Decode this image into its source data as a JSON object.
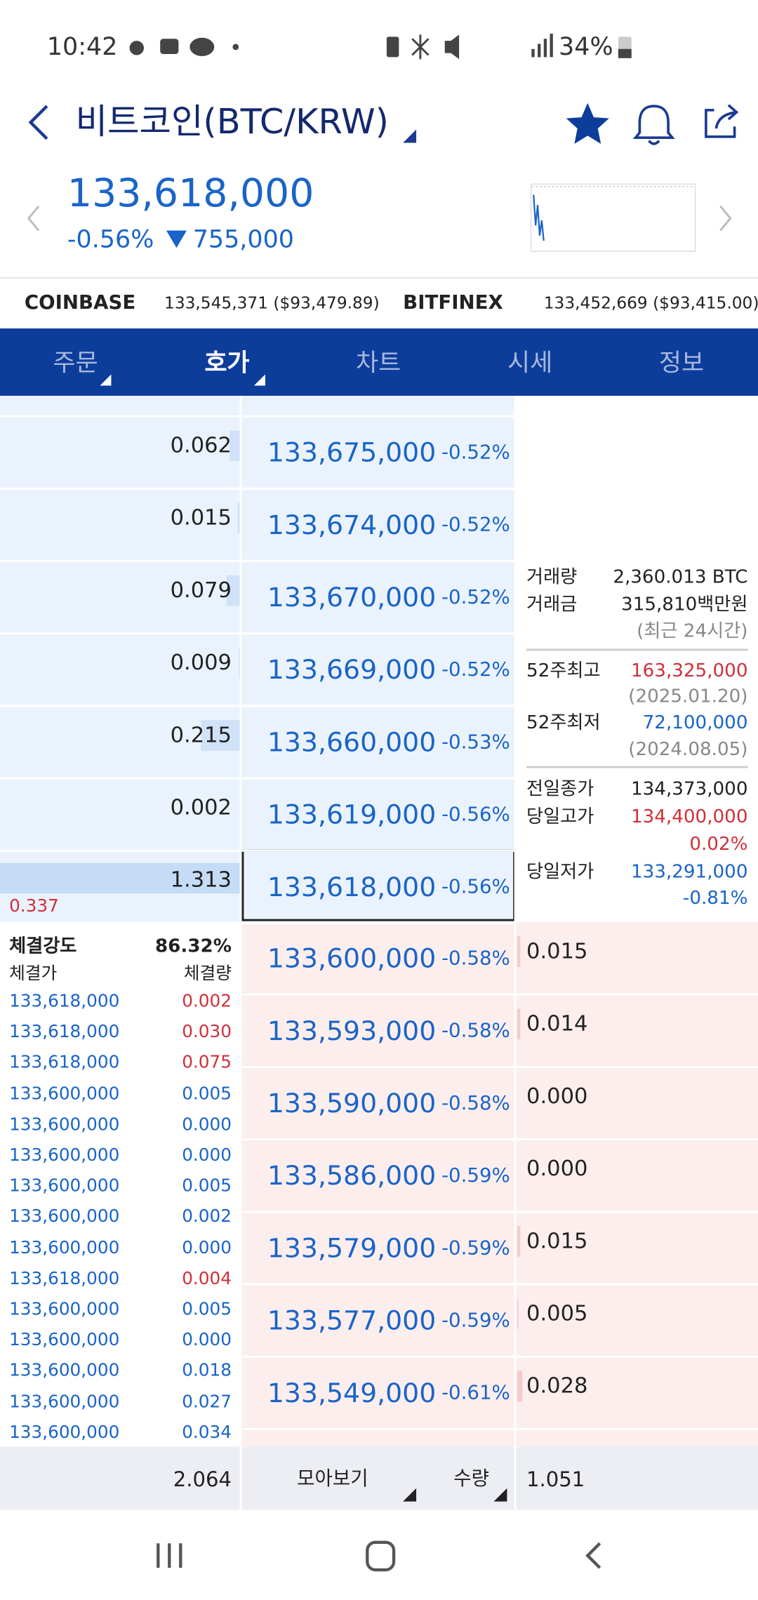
{
  "status": {
    "time": "10:42",
    "battery": "34%"
  },
  "header": {
    "title": "비트코인(BTC/KRW)",
    "price": "133,618,000",
    "change_rate": "-0.56%",
    "change_amount": "755,000"
  },
  "exchanges": [
    {
      "name": "COINBASE",
      "price": "133,545,371 ($93,479.89)"
    },
    {
      "name": "BITFINEX",
      "price": "133,452,669 ($93,415.00)"
    }
  ],
  "tabs": [
    "주문",
    "호가",
    "차트",
    "시세",
    "정보"
  ],
  "asks": [
    {
      "quantity": "0.062",
      "price": "133,675,000",
      "rate": "-0.52%"
    },
    {
      "quantity": "0.015",
      "price": "133,674,000",
      "rate": "-0.52%"
    },
    {
      "quantity": "0.079",
      "price": "133,670,000",
      "rate": "-0.52%"
    },
    {
      "quantity": "0.009",
      "price": "133,669,000",
      "rate": "-0.52%"
    },
    {
      "quantity": "0.215",
      "price": "133,660,000",
      "rate": "-0.53%"
    },
    {
      "quantity": "0.002",
      "price": "133,619,000",
      "rate": "-0.56%"
    },
    {
      "quantity": "1.313",
      "price": "133,618,000",
      "rate": "-0.56%"
    }
  ],
  "current_note": "0.337",
  "info": {
    "volume_label": "거래량",
    "volume": "2,360.013 BTC",
    "amount_label": "거래금",
    "amount": "315,810백만원",
    "period": "(최근 24시간)",
    "high52_label": "52주최고",
    "high52": "163,325,000",
    "high52_date": "(2025.01.20)",
    "low52_label": "52주최저",
    "low52": "72,100,000",
    "low52_date": "(2024.08.05)",
    "prev_close_label": "전일종가",
    "prev_close": "134,373,000",
    "day_high_label": "당일고가",
    "day_high": "134,400,000",
    "day_high_rate": "0.02%",
    "day_low_label": "당일저가",
    "day_low": "133,291,000",
    "day_low_rate": "-0.81%"
  },
  "bids": [
    {
      "price": "133,600,000",
      "rate": "-0.58%",
      "quantity": "0.015"
    },
    {
      "price": "133,593,000",
      "rate": "-0.58%",
      "quantity": "0.014"
    },
    {
      "price": "133,590,000",
      "rate": "-0.58%",
      "quantity": "0.000"
    },
    {
      "price": "133,586,000",
      "rate": "-0.59%",
      "quantity": "0.000"
    },
    {
      "price": "133,579,000",
      "rate": "-0.59%",
      "quantity": "0.015"
    },
    {
      "price": "133,577,000",
      "rate": "-0.59%",
      "quantity": "0.005"
    },
    {
      "price": "133,549,000",
      "rate": "-0.61%",
      "quantity": "0.028"
    }
  ],
  "trades": {
    "strength_label": "체결강도",
    "strength": "86.32%",
    "price_header": "체결가",
    "qty_header": "체결량",
    "rows": [
      {
        "price": "133,618,000",
        "qty": "0.002",
        "color": "#d0303a"
      },
      {
        "price": "133,618,000",
        "qty": "0.030",
        "color": "#d0303a"
      },
      {
        "price": "133,618,000",
        "qty": "0.075",
        "color": "#d0303a"
      },
      {
        "price": "133,600,000",
        "qty": "0.005",
        "color": "#1a64c8"
      },
      {
        "price": "133,600,000",
        "qty": "0.000",
        "color": "#1a64c8"
      },
      {
        "price": "133,600,000",
        "qty": "0.000",
        "color": "#1a64c8"
      },
      {
        "price": "133,600,000",
        "qty": "0.005",
        "color": "#1a64c8"
      },
      {
        "price": "133,600,000",
        "qty": "0.002",
        "color": "#1a64c8"
      },
      {
        "price": "133,600,000",
        "qty": "0.000",
        "color": "#1a64c8"
      },
      {
        "price": "133,618,000",
        "qty": "0.004",
        "color": "#d0303a"
      },
      {
        "price": "133,600,000",
        "qty": "0.005",
        "color": "#1a64c8"
      },
      {
        "price": "133,600,000",
        "qty": "0.000",
        "color": "#1a64c8"
      },
      {
        "price": "133,600,000",
        "qty": "0.018",
        "color": "#1a64c8"
      },
      {
        "price": "133,600,000",
        "qty": "0.027",
        "color": "#1a64c8"
      },
      {
        "price": "133,600,000",
        "qty": "0.034",
        "color": "#1a64c8"
      }
    ]
  },
  "footer": {
    "ask_total": "2.064",
    "group_label": "모아보기",
    "unit_label": "수량",
    "bid_total": "1.051"
  }
}
